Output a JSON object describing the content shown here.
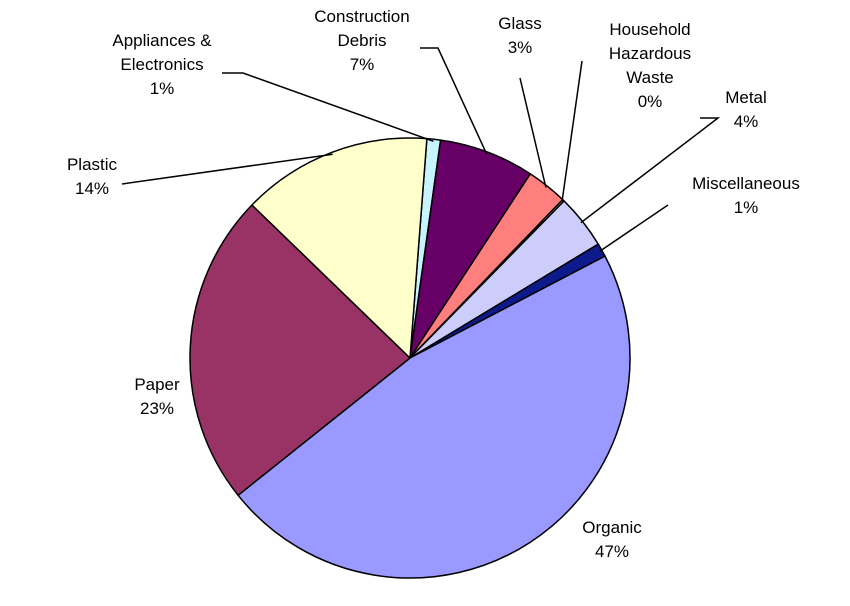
{
  "chart_data": {
    "type": "pie",
    "title": "",
    "legend": "none",
    "slices": [
      {
        "name": "Appliances & Electronics",
        "label_lines": [
          "Appliances &",
          "Electronics"
        ],
        "percent_label": "1%",
        "value": 1,
        "color": "#c8f4ff"
      },
      {
        "name": "Construction Debris",
        "label_lines": [
          "Construction",
          "Debris"
        ],
        "percent_label": "7%",
        "value": 7,
        "color": "#660066"
      },
      {
        "name": "Glass",
        "label_lines": [
          "Glass"
        ],
        "percent_label": "3%",
        "value": 3,
        "color": "#ff7f7f"
      },
      {
        "name": "Household Hazardous Waste",
        "label_lines": [
          "Household",
          "Hazardous",
          "Waste"
        ],
        "percent_label": "0%",
        "value": 0,
        "color": "#ffffff"
      },
      {
        "name": "Metal",
        "label_lines": [
          "Metal"
        ],
        "percent_label": "4%",
        "value": 4,
        "color": "#cccdfb"
      },
      {
        "name": "Miscellaneous",
        "label_lines": [
          "Miscellaneous"
        ],
        "percent_label": "1%",
        "value": 1,
        "color": "#0d1a8c"
      },
      {
        "name": "Organic",
        "label_lines": [
          "Organic"
        ],
        "percent_label": "47%",
        "value": 47,
        "color": "#9999ff"
      },
      {
        "name": "Paper",
        "label_lines": [
          "Paper"
        ],
        "percent_label": "23%",
        "value": 23,
        "color": "#993366"
      },
      {
        "name": "Plastic",
        "label_lines": [
          "Plastic"
        ],
        "percent_label": "14%",
        "value": 14,
        "color": "#ffffcc"
      }
    ]
  }
}
